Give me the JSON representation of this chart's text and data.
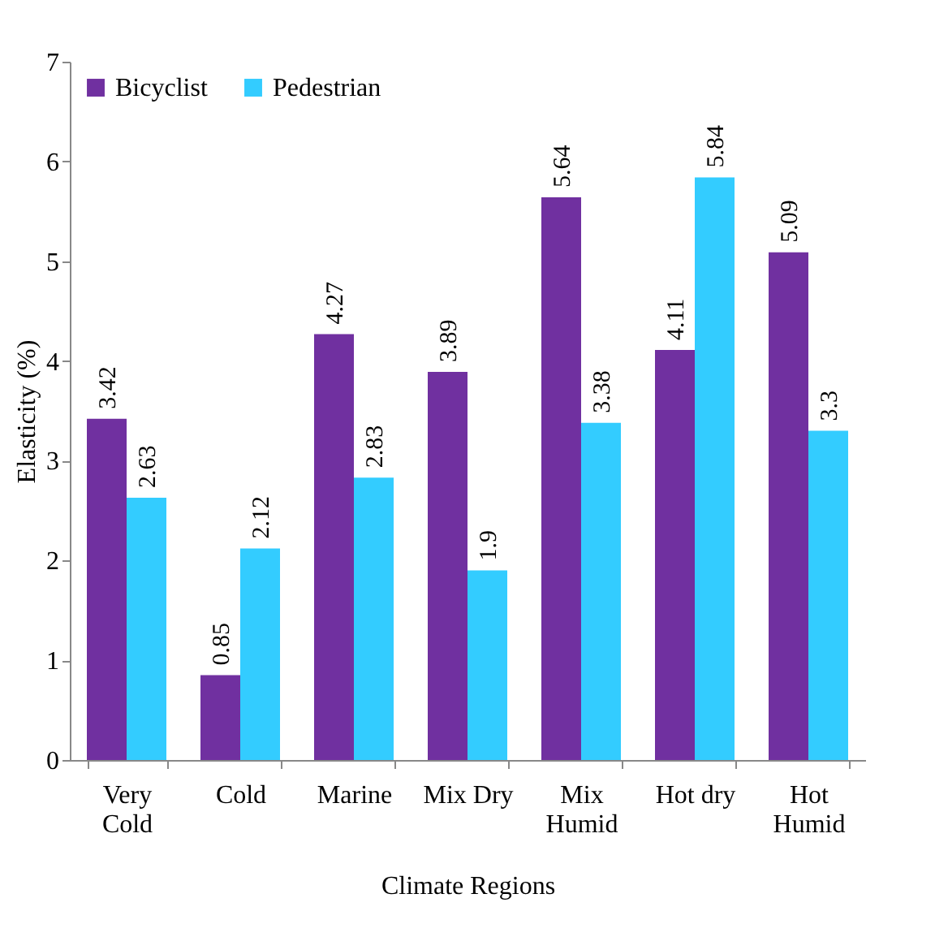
{
  "chart_data": {
    "type": "bar",
    "xlabel": "Climate Regions",
    "ylabel": "Elasticity (%)",
    "categories": [
      "Very Cold",
      "Cold",
      "Marine",
      "Mix Dry",
      "Mix Humid",
      "Hot dry",
      "Hot Humid"
    ],
    "series": [
      {
        "name": "Bicyclist",
        "color": "#7030a0",
        "values": [
          3.42,
          0.85,
          4.27,
          3.89,
          5.64,
          4.11,
          5.09
        ]
      },
      {
        "name": "Pedestrian",
        "color": "#33ccff",
        "values": [
          2.63,
          2.12,
          2.83,
          1.9,
          3.38,
          5.84,
          3.3
        ]
      }
    ],
    "ylim": [
      0,
      7
    ],
    "yticks": [
      0,
      1,
      2,
      3,
      4,
      5,
      6,
      7
    ],
    "data_labels": true,
    "legend": "top left"
  }
}
